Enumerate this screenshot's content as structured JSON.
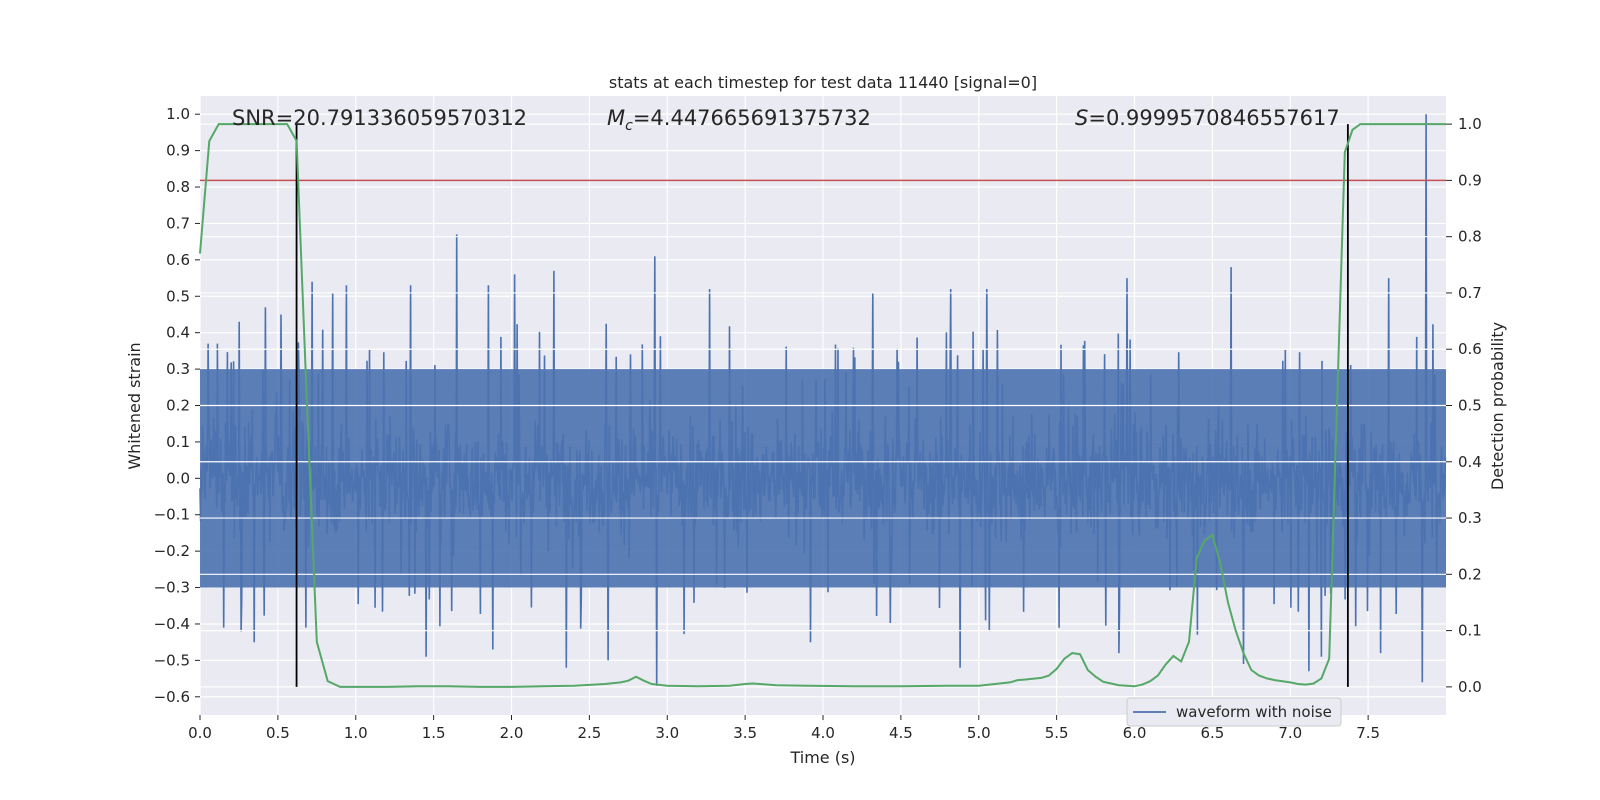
{
  "chart_data": {
    "type": "line",
    "title": "stats at each timestep for test data 11440 [signal=0]",
    "xlabel": "Time (s)",
    "ylabel": "Whitened strain",
    "y2label": "Detection probability",
    "xlim": [
      0.0,
      8.0
    ],
    "ylim": [
      -0.65,
      1.05
    ],
    "y2lim": [
      -0.05,
      1.05
    ],
    "x_ticks": [
      "0.0",
      "0.5",
      "1.0",
      "1.5",
      "2.0",
      "2.5",
      "3.0",
      "3.5",
      "4.0",
      "4.5",
      "5.0",
      "5.5",
      "6.0",
      "6.5",
      "7.0",
      "7.5"
    ],
    "y_ticks": [
      "1.0",
      "0.9",
      "0.8",
      "0.7",
      "0.6",
      "0.5",
      "0.4",
      "0.3",
      "0.2",
      "0.1",
      "0.0",
      "−0.1",
      "−0.2",
      "−0.3",
      "−0.4",
      "−0.5",
      "−0.6"
    ],
    "y2_ticks": [
      "1.0",
      "0.9",
      "0.8",
      "0.7",
      "0.6",
      "0.5",
      "0.4",
      "0.3",
      "0.2",
      "0.1",
      "0.0"
    ],
    "annotations": {
      "snr": "SNR=20.791336059570312",
      "mc_prefix": "M",
      "mc_sub": "c",
      "mc_value": "=4.447665691375732",
      "s_prefix": "S",
      "s_value": "=0.9999570846557617"
    },
    "legend": {
      "placement": "lower-right",
      "entries": [
        "waveform with noise"
      ]
    },
    "threshold": {
      "y2": 0.9,
      "color": "#c44e52"
    },
    "detection_lines_x": [
      0.62,
      7.37
    ],
    "grid": true,
    "series": [
      {
        "name": "waveform with noise",
        "axis": "left",
        "color": "#4c72b0",
        "style": "noise",
        "dt": 0.004,
        "core_amplitude": 0.3,
        "spikes": [
          {
            "x": 0.05,
            "y": 0.37
          },
          {
            "x": 0.25,
            "y": 0.43
          },
          {
            "x": 0.42,
            "y": 0.47
          },
          {
            "x": 0.52,
            "y": 0.45
          },
          {
            "x": 0.72,
            "y": 0.54
          },
          {
            "x": 0.85,
            "y": 0.51
          },
          {
            "x": 0.94,
            "y": 0.53
          },
          {
            "x": 1.35,
            "y": 0.53
          },
          {
            "x": 1.65,
            "y": 0.67
          },
          {
            "x": 1.85,
            "y": 0.53
          },
          {
            "x": 2.02,
            "y": 0.56
          },
          {
            "x": 2.27,
            "y": 0.57
          },
          {
            "x": 2.92,
            "y": 0.61
          },
          {
            "x": 3.27,
            "y": 0.52
          },
          {
            "x": 4.32,
            "y": 0.51
          },
          {
            "x": 4.82,
            "y": 0.52
          },
          {
            "x": 5.05,
            "y": 0.52
          },
          {
            "x": 5.95,
            "y": 0.55
          },
          {
            "x": 6.62,
            "y": 0.58
          },
          {
            "x": 7.63,
            "y": 0.55
          },
          {
            "x": 7.87,
            "y": 1.0
          },
          {
            "x": 0.15,
            "y": -0.41
          },
          {
            "x": 0.35,
            "y": -0.45
          },
          {
            "x": 0.68,
            "y": -0.41
          },
          {
            "x": 1.45,
            "y": -0.49
          },
          {
            "x": 1.88,
            "y": -0.47
          },
          {
            "x": 2.35,
            "y": -0.52
          },
          {
            "x": 2.62,
            "y": -0.5
          },
          {
            "x": 2.93,
            "y": -0.57
          },
          {
            "x": 3.92,
            "y": -0.45
          },
          {
            "x": 4.88,
            "y": -0.52
          },
          {
            "x": 5.9,
            "y": -0.48
          },
          {
            "x": 6.7,
            "y": -0.51
          },
          {
            "x": 7.12,
            "y": -0.53
          },
          {
            "x": 7.2,
            "y": -0.49
          },
          {
            "x": 7.58,
            "y": -0.48
          },
          {
            "x": 7.85,
            "y": -0.56
          }
        ]
      },
      {
        "name": "detection probability",
        "axis": "right",
        "color": "#55a868",
        "x": [
          0.0,
          0.06,
          0.12,
          0.2,
          0.3,
          0.4,
          0.5,
          0.56,
          0.62,
          0.68,
          0.75,
          0.82,
          0.9,
          1.0,
          1.2,
          1.4,
          1.6,
          1.8,
          2.0,
          2.2,
          2.4,
          2.6,
          2.7,
          2.75,
          2.8,
          2.85,
          2.9,
          3.0,
          3.2,
          3.4,
          3.5,
          3.55,
          3.7,
          3.9,
          4.2,
          4.5,
          4.8,
          5.0,
          5.2,
          5.25,
          5.3,
          5.4,
          5.45,
          5.5,
          5.55,
          5.6,
          5.65,
          5.7,
          5.75,
          5.8,
          5.85,
          5.9,
          5.95,
          6.0,
          6.05,
          6.1,
          6.15,
          6.2,
          6.25,
          6.3,
          6.35,
          6.4,
          6.45,
          6.5,
          6.55,
          6.6,
          6.65,
          6.7,
          6.75,
          6.8,
          6.85,
          6.9,
          6.95,
          7.0,
          7.05,
          7.1,
          7.15,
          7.2,
          7.25,
          7.3,
          7.35,
          7.4,
          7.45,
          7.5,
          7.6,
          7.7,
          7.8,
          7.9,
          8.0
        ],
        "y": [
          0.77,
          0.97,
          1.0,
          1.0,
          1.0,
          1.0,
          1.0,
          1.0,
          0.97,
          0.55,
          0.08,
          0.01,
          0.0,
          0.0,
          0.0,
          0.001,
          0.001,
          0.0,
          0.0,
          0.001,
          0.002,
          0.005,
          0.008,
          0.011,
          0.018,
          0.011,
          0.005,
          0.002,
          0.001,
          0.002,
          0.005,
          0.006,
          0.003,
          0.002,
          0.001,
          0.001,
          0.002,
          0.002,
          0.008,
          0.012,
          0.013,
          0.016,
          0.02,
          0.032,
          0.05,
          0.06,
          0.058,
          0.03,
          0.018,
          0.009,
          0.006,
          0.003,
          0.002,
          0.001,
          0.004,
          0.01,
          0.02,
          0.04,
          0.055,
          0.045,
          0.08,
          0.23,
          0.26,
          0.27,
          0.22,
          0.15,
          0.1,
          0.06,
          0.03,
          0.02,
          0.015,
          0.012,
          0.01,
          0.008,
          0.005,
          0.004,
          0.006,
          0.015,
          0.05,
          0.5,
          0.95,
          0.99,
          1.0,
          1.0,
          1.0,
          1.0,
          1.0,
          1.0,
          1.0
        ]
      }
    ]
  }
}
